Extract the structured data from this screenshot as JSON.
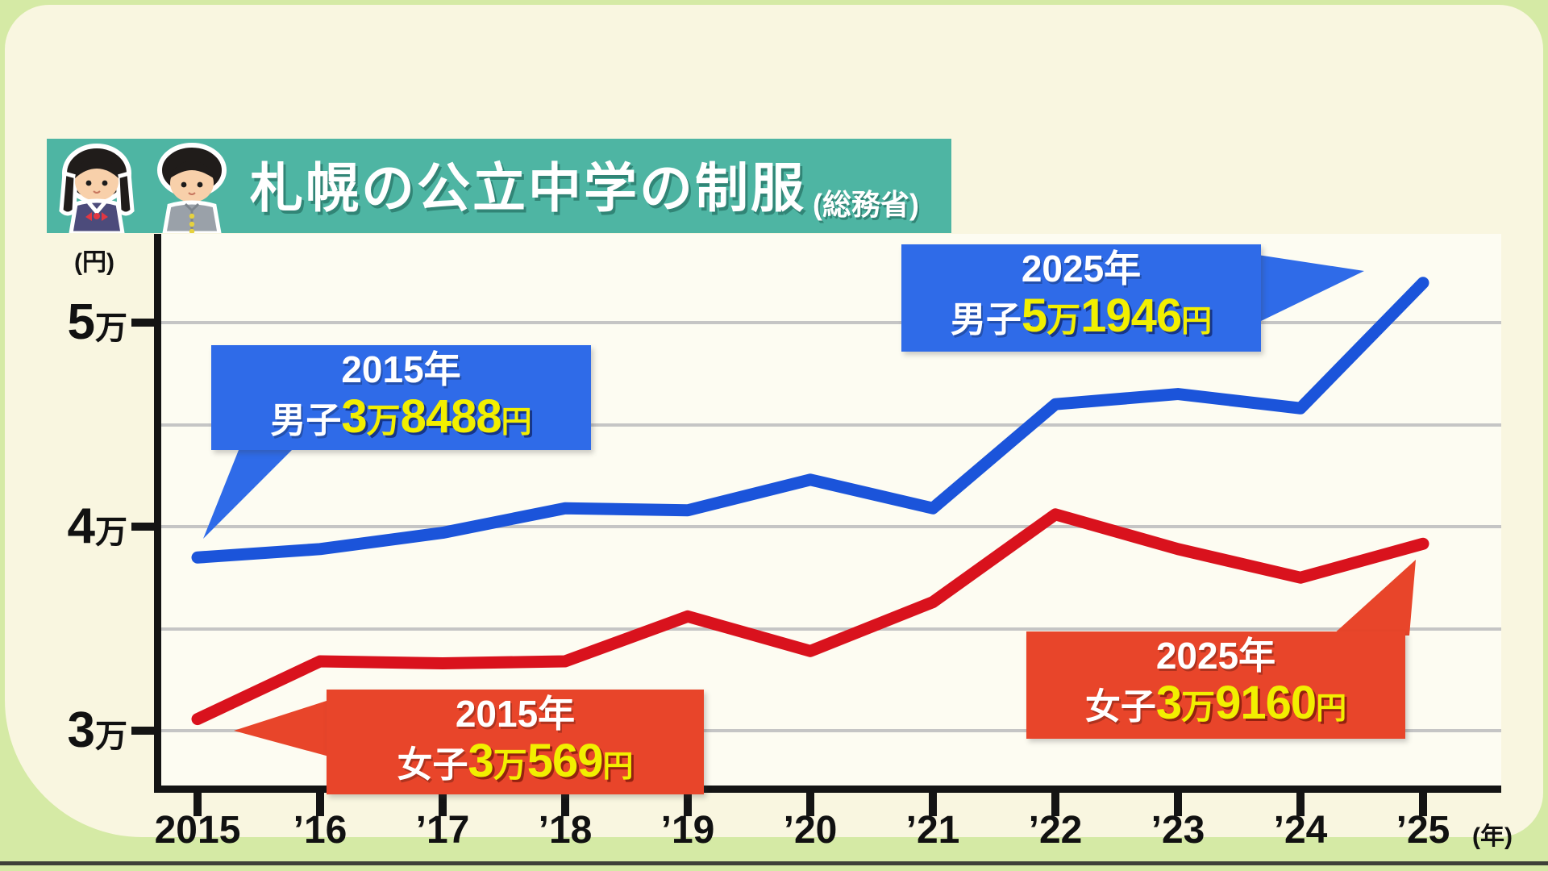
{
  "header": {
    "title": "札幌の公立中学の制服",
    "source_note": "(総務省)"
  },
  "y_axis": {
    "unit_label": "(円)",
    "ticks": [
      {
        "num": "5",
        "suffix": "万",
        "value": 50000
      },
      {
        "num": "4",
        "suffix": "万",
        "value": 40000
      },
      {
        "num": "3",
        "suffix": "万",
        "value": 30000
      }
    ]
  },
  "x_axis": {
    "unit_label": "(年)",
    "labels": [
      "2015",
      "’16",
      "’17",
      "’18",
      "’19",
      "’20",
      "’21",
      "’22",
      "’23",
      "’24",
      "’25"
    ]
  },
  "chart_data": {
    "type": "line",
    "title": "札幌の公立中学の制服(総務省)",
    "xlabel": "年",
    "ylabel": "円",
    "x": [
      2015,
      2016,
      2017,
      2018,
      2019,
      2020,
      2021,
      2022,
      2023,
      2024,
      2025
    ],
    "series": [
      {
        "name": "男子",
        "color": "#1b54da",
        "values": [
          38488,
          38900,
          39700,
          40900,
          40800,
          42300,
          40900,
          46000,
          46500,
          45800,
          51946
        ]
      },
      {
        "name": "女子",
        "color": "#d9121d",
        "values": [
          30569,
          33400,
          33300,
          33400,
          35600,
          33900,
          36300,
          40600,
          38900,
          37500,
          39160
        ]
      }
    ],
    "labeled_points": {
      "男子_2015": 38488,
      "男子_2025": 51946,
      "女子_2015": 30569,
      "女子_2025": 39160
    },
    "ylim": [
      28600,
      53400
    ],
    "grid_values": [
      50000,
      45000,
      40000,
      35000,
      30000
    ],
    "legend_position": "none",
    "grid": true
  },
  "callouts": {
    "boy2015": {
      "year": "2015年",
      "prefix": "男子",
      "wan": "3",
      "wan_unit": "万",
      "digits": "8488",
      "yen": "円"
    },
    "boy2025": {
      "year": "2025年",
      "prefix": "男子",
      "wan": "5",
      "wan_unit": "万",
      "digits": "1946",
      "yen": "円"
    },
    "girl2015": {
      "year": "2015年",
      "prefix": "女子",
      "wan": "3",
      "wan_unit": "万",
      "digits": "569",
      "yen": "円"
    },
    "girl2025": {
      "year": "2025年",
      "prefix": "女子",
      "wan": "3",
      "wan_unit": "万",
      "digits": "9160",
      "yen": "円"
    }
  }
}
